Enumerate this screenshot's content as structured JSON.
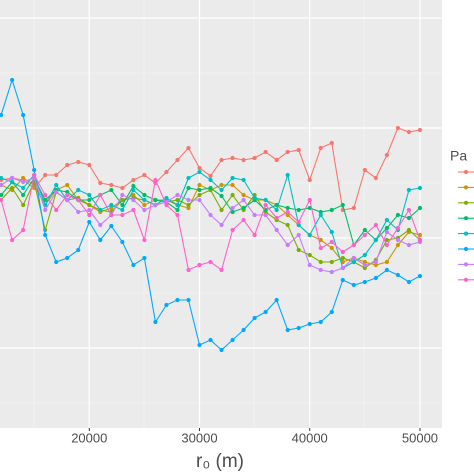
{
  "chart_data": {
    "type": "line",
    "x_label": "r₀ (m)",
    "legend_title": "Pa",
    "x": [
      12000,
      13000,
      14000,
      15000,
      16000,
      17000,
      18000,
      19000,
      20000,
      21000,
      22000,
      23000,
      24000,
      25000,
      26000,
      27000,
      28000,
      29000,
      30000,
      31000,
      32000,
      33000,
      34000,
      35000,
      36000,
      37000,
      38000,
      39000,
      40000,
      41000,
      42000,
      43000,
      44000,
      45000,
      46000,
      47000,
      48000,
      49000,
      50000
    ],
    "xlim": [
      11900,
      52000
    ],
    "xticks": [
      20000,
      30000,
      40000,
      50000
    ],
    "ylim": [
      0,
      428
    ],
    "grid": true,
    "series": [
      {
        "color": "#F8766D",
        "values": [
          248,
          250,
          248,
          240,
          253,
          253,
          263,
          266,
          263,
          245,
          243,
          240,
          248,
          253,
          245,
          256,
          268,
          280,
          260,
          252,
          268,
          270,
          268,
          270,
          276,
          268,
          276,
          278,
          248,
          280,
          285,
          218,
          220,
          258,
          250,
          273,
          300,
          296,
          298
        ]
      },
      {
        "color": "#CD9600",
        "values": [
          243,
          238,
          250,
          243,
          223,
          238,
          243,
          228,
          223,
          216,
          220,
          228,
          233,
          223,
          228,
          228,
          223,
          220,
          243,
          238,
          243,
          243,
          233,
          228,
          228,
          223,
          213,
          203,
          193,
          188,
          180,
          166,
          170,
          166,
          163,
          166,
          183,
          196,
          193
        ]
      },
      {
        "color": "#7CAE00",
        "values": [
          228,
          240,
          223,
          246,
          198,
          236,
          228,
          230,
          223,
          218,
          216,
          228,
          230,
          228,
          223,
          226,
          228,
          223,
          233,
          238,
          218,
          233,
          218,
          233,
          216,
          208,
          203,
          178,
          173,
          166,
          166,
          170,
          166,
          160,
          168,
          188,
          190,
          198,
          188
        ]
      },
      {
        "color": "#00BE67",
        "values": [
          233,
          246,
          233,
          250,
          228,
          238,
          236,
          228,
          228,
          233,
          238,
          223,
          242,
          233,
          228,
          226,
          218,
          240,
          238,
          240,
          232,
          216,
          220,
          228,
          218,
          223,
          220,
          218,
          220,
          216,
          218,
          223,
          183,
          198,
          188,
          200,
          213,
          210,
          220
        ]
      },
      {
        "color": "#00BFC4",
        "values": [
          250,
          246,
          240,
          253,
          223,
          243,
          228,
          238,
          233,
          218,
          223,
          218,
          238,
          228,
          223,
          230,
          223,
          250,
          256,
          248,
          238,
          250,
          248,
          230,
          228,
          218,
          253,
          203,
          193,
          213,
          196,
          160,
          166,
          173,
          188,
          208,
          198,
          238,
          240
        ]
      },
      {
        "color": "#00A9FF",
        "values": [
          313,
          348,
          313,
          258,
          193,
          166,
          170,
          178,
          206,
          188,
          202,
          186,
          163,
          170,
          106,
          123,
          128,
          128,
          83,
          88,
          78,
          88,
          98,
          110,
          116,
          128,
          98,
          100,
          104,
          106,
          116,
          148,
          143,
          146,
          150,
          158,
          153,
          146,
          152
        ]
      },
      {
        "color": "#C77CFF",
        "values": [
          243,
          250,
          246,
          250,
          218,
          236,
          228,
          216,
          218,
          203,
          213,
          233,
          228,
          218,
          223,
          226,
          233,
          228,
          228,
          213,
          203,
          220,
          228,
          213,
          213,
          198,
          183,
          193,
          163,
          158,
          156,
          160,
          170,
          163,
          166,
          196,
          188,
          183,
          186
        ]
      },
      {
        "color": "#FF61CC",
        "values": [
          228,
          188,
          198,
          253,
          233,
          218,
          233,
          228,
          213,
          233,
          213,
          213,
          218,
          188,
          248,
          223,
          213,
          158,
          163,
          166,
          158,
          198,
          208,
          193,
          223,
          210,
          216,
          206,
          228,
          180,
          186,
          176,
          183,
          193,
          203,
          183,
          200,
          218,
          188
        ]
      }
    ]
  }
}
